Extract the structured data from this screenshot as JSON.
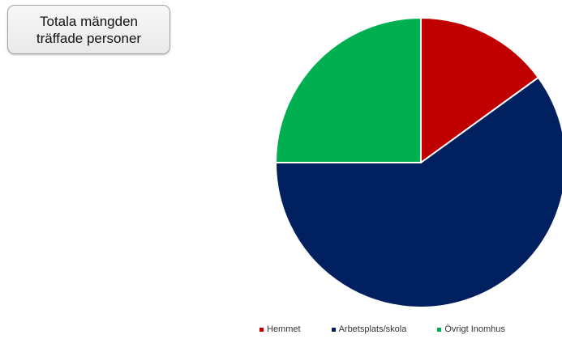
{
  "title": {
    "line1": "Totala mängden",
    "line2": "träffade personer"
  },
  "chart_data": {
    "type": "pie",
    "categories": [
      "Hemmet",
      "Arbetsplats/skola",
      "Övrigt Inomhus"
    ],
    "values": [
      15,
      60,
      25
    ],
    "colors": [
      "#c00000",
      "#002060",
      "#00b050"
    ],
    "start_angle_deg": 0,
    "direction": "clockwise",
    "legend_position": "bottom"
  }
}
